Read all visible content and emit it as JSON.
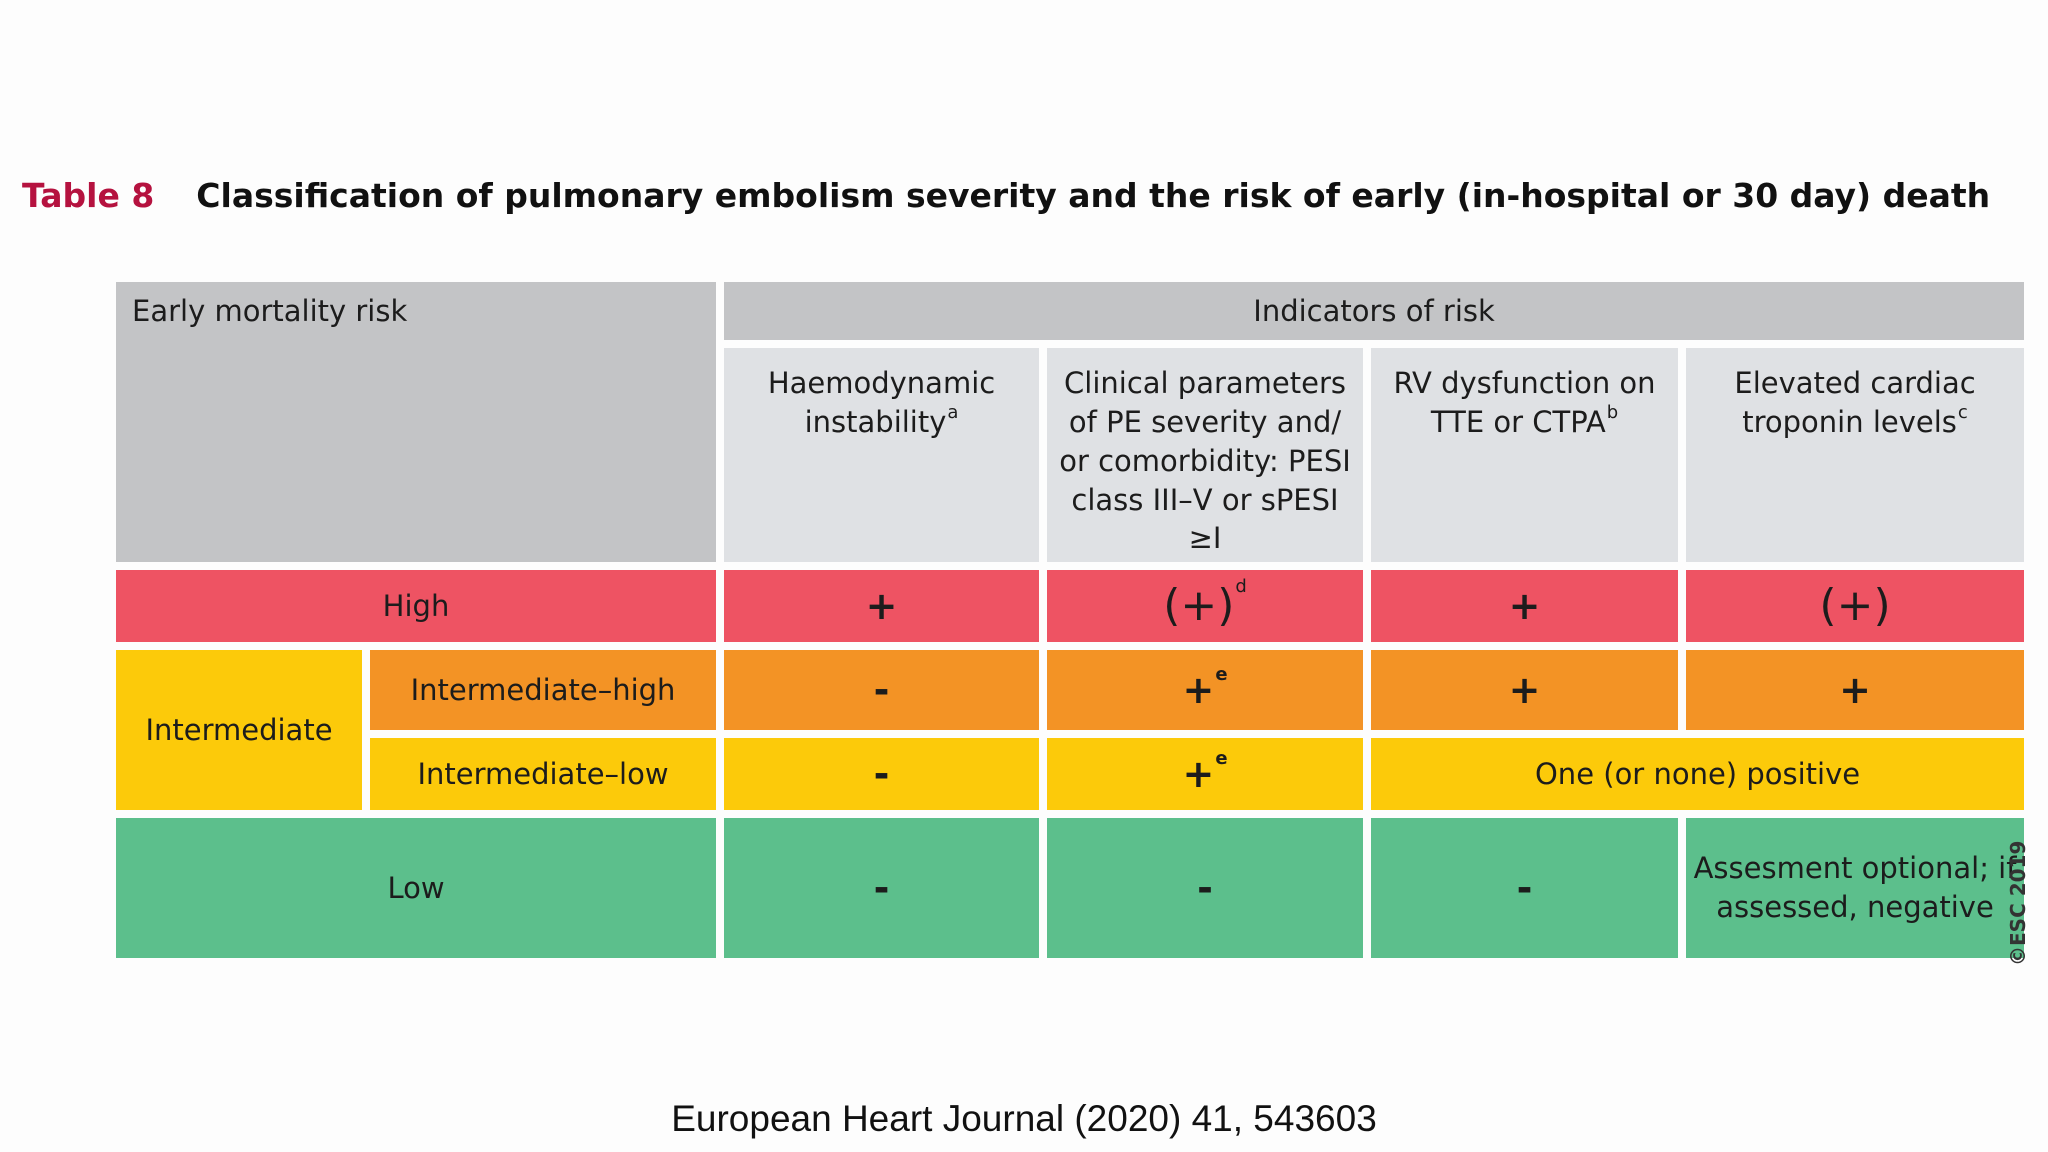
{
  "caption": {
    "number": "Table 8",
    "title": "Classification of pulmonary embolism severity and the risk of early (in-hospital or 30 day) death"
  },
  "table": {
    "corner": "Early mortality risk",
    "group_header": "Indicators of risk",
    "columns": [
      {
        "label": "Haemodynamic instability",
        "ref": "a"
      },
      {
        "label": "Clinical parameters of PE severity and/ or comorbidity: PESI class III–V or sPESI ≥I",
        "ref": ""
      },
      {
        "label": "RV dysfunction on TTE or CTPA",
        "ref": "b"
      },
      {
        "label": "Elevated cardiac troponin levels",
        "ref": "c"
      }
    ],
    "rows": {
      "high": {
        "label": "High",
        "values": [
          "+",
          "(+)",
          "+",
          "(+)"
        ],
        "clinical_ref": "d"
      },
      "intermediate": {
        "label": "Intermediate"
      },
      "intermediate_high": {
        "label": "Intermediate–high",
        "values": [
          "-",
          "+",
          "+",
          "+"
        ],
        "clinical_ref": "e"
      },
      "intermediate_low": {
        "label": "Intermediate–low",
        "values": [
          "-",
          "+"
        ],
        "clinical_ref": "e",
        "merged": "One (or none) positive"
      },
      "low": {
        "label": "Low",
        "values": [
          "-",
          "-",
          "-"
        ],
        "troponin": "Assesment optional; if assessed, negative"
      }
    }
  },
  "colors": {
    "header_gray": "#c3c4c6",
    "subheader_gray": "#dfe1e4",
    "high": "#ee5363",
    "intermediate_high": "#f39325",
    "intermediate_low": "#fcca0a",
    "low": "#5cbf8c",
    "table_label": "#b5123f"
  },
  "copyright": "©ESC 2019",
  "footer": "European Heart Journal (2020) 41, 543603"
}
